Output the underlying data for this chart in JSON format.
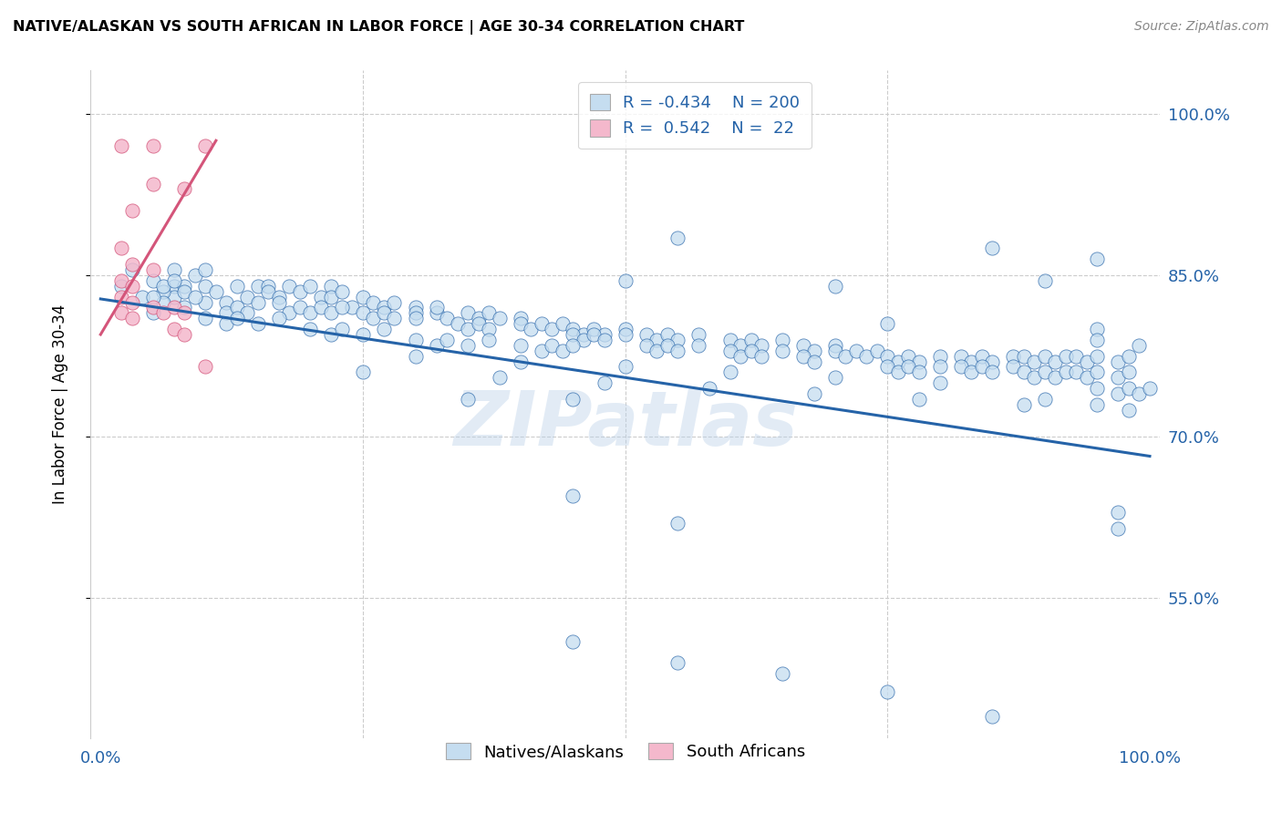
{
  "title": "NATIVE/ALASKAN VS SOUTH AFRICAN IN LABOR FORCE | AGE 30-34 CORRELATION CHART",
  "source": "Source: ZipAtlas.com",
  "ylabel": "In Labor Force | Age 30-34",
  "ytick_labels": [
    "100.0%",
    "85.0%",
    "70.0%",
    "55.0%"
  ],
  "ytick_values": [
    1.0,
    0.85,
    0.7,
    0.55
  ],
  "watermark": "ZIPatlas",
  "blue_R": "-0.434",
  "blue_N": "200",
  "pink_R": "0.542",
  "pink_N": "22",
  "blue_color": "#c5ddf0",
  "pink_color": "#f4b8cc",
  "blue_line_color": "#2563a8",
  "pink_line_color": "#d4557a",
  "legend_blue_label": "Natives/Alaskans",
  "legend_pink_label": "South Africans",
  "blue_scatter": [
    [
      0.02,
      0.84
    ],
    [
      0.03,
      0.855
    ],
    [
      0.04,
      0.83
    ],
    [
      0.07,
      0.855
    ],
    [
      0.07,
      0.84
    ],
    [
      0.07,
      0.83
    ],
    [
      0.08,
      0.84
    ],
    [
      0.09,
      0.85
    ],
    [
      0.1,
      0.855
    ],
    [
      0.05,
      0.845
    ],
    [
      0.06,
      0.835
    ],
    [
      0.05,
      0.815
    ],
    [
      0.06,
      0.825
    ],
    [
      0.08,
      0.82
    ],
    [
      0.1,
      0.84
    ],
    [
      0.1,
      0.825
    ],
    [
      0.11,
      0.835
    ],
    [
      0.12,
      0.825
    ],
    [
      0.13,
      0.84
    ],
    [
      0.14,
      0.83
    ],
    [
      0.15,
      0.84
    ],
    [
      0.16,
      0.84
    ],
    [
      0.18,
      0.84
    ],
    [
      0.16,
      0.835
    ],
    [
      0.17,
      0.83
    ],
    [
      0.15,
      0.825
    ],
    [
      0.17,
      0.825
    ],
    [
      0.19,
      0.835
    ],
    [
      0.2,
      0.84
    ],
    [
      0.21,
      0.83
    ],
    [
      0.22,
      0.84
    ],
    [
      0.22,
      0.83
    ],
    [
      0.23,
      0.835
    ],
    [
      0.24,
      0.82
    ],
    [
      0.25,
      0.83
    ],
    [
      0.26,
      0.825
    ],
    [
      0.27,
      0.82
    ],
    [
      0.28,
      0.825
    ],
    [
      0.3,
      0.82
    ],
    [
      0.32,
      0.815
    ],
    [
      0.3,
      0.815
    ],
    [
      0.32,
      0.82
    ],
    [
      0.18,
      0.815
    ],
    [
      0.19,
      0.82
    ],
    [
      0.2,
      0.815
    ],
    [
      0.21,
      0.82
    ],
    [
      0.22,
      0.815
    ],
    [
      0.23,
      0.82
    ],
    [
      0.12,
      0.815
    ],
    [
      0.13,
      0.82
    ],
    [
      0.14,
      0.815
    ],
    [
      0.05,
      0.83
    ],
    [
      0.06,
      0.84
    ],
    [
      0.07,
      0.845
    ],
    [
      0.08,
      0.835
    ],
    [
      0.09,
      0.83
    ],
    [
      0.25,
      0.815
    ],
    [
      0.26,
      0.81
    ],
    [
      0.27,
      0.815
    ],
    [
      0.28,
      0.81
    ],
    [
      0.3,
      0.81
    ],
    [
      0.35,
      0.815
    ],
    [
      0.36,
      0.81
    ],
    [
      0.37,
      0.815
    ],
    [
      0.38,
      0.81
    ],
    [
      0.4,
      0.81
    ],
    [
      0.33,
      0.81
    ],
    [
      0.34,
      0.805
    ],
    [
      0.35,
      0.8
    ],
    [
      0.36,
      0.805
    ],
    [
      0.37,
      0.8
    ],
    [
      0.4,
      0.805
    ],
    [
      0.41,
      0.8
    ],
    [
      0.42,
      0.805
    ],
    [
      0.43,
      0.8
    ],
    [
      0.44,
      0.805
    ],
    [
      0.45,
      0.8
    ],
    [
      0.46,
      0.795
    ],
    [
      0.47,
      0.8
    ],
    [
      0.48,
      0.795
    ],
    [
      0.5,
      0.8
    ],
    [
      0.45,
      0.795
    ],
    [
      0.46,
      0.79
    ],
    [
      0.47,
      0.795
    ],
    [
      0.48,
      0.79
    ],
    [
      0.5,
      0.795
    ],
    [
      0.52,
      0.795
    ],
    [
      0.53,
      0.79
    ],
    [
      0.54,
      0.795
    ],
    [
      0.55,
      0.79
    ],
    [
      0.57,
      0.795
    ],
    [
      0.52,
      0.785
    ],
    [
      0.53,
      0.78
    ],
    [
      0.54,
      0.785
    ],
    [
      0.55,
      0.78
    ],
    [
      0.57,
      0.785
    ],
    [
      0.6,
      0.79
    ],
    [
      0.61,
      0.785
    ],
    [
      0.62,
      0.79
    ],
    [
      0.63,
      0.785
    ],
    [
      0.65,
      0.79
    ],
    [
      0.6,
      0.78
    ],
    [
      0.61,
      0.775
    ],
    [
      0.62,
      0.78
    ],
    [
      0.63,
      0.775
    ],
    [
      0.65,
      0.78
    ],
    [
      0.67,
      0.785
    ],
    [
      0.68,
      0.78
    ],
    [
      0.7,
      0.785
    ],
    [
      0.67,
      0.775
    ],
    [
      0.68,
      0.77
    ],
    [
      0.7,
      0.78
    ],
    [
      0.71,
      0.775
    ],
    [
      0.72,
      0.78
    ],
    [
      0.73,
      0.775
    ],
    [
      0.74,
      0.78
    ],
    [
      0.75,
      0.775
    ],
    [
      0.76,
      0.77
    ],
    [
      0.77,
      0.775
    ],
    [
      0.78,
      0.77
    ],
    [
      0.8,
      0.775
    ],
    [
      0.75,
      0.765
    ],
    [
      0.76,
      0.76
    ],
    [
      0.77,
      0.765
    ],
    [
      0.78,
      0.76
    ],
    [
      0.8,
      0.765
    ],
    [
      0.82,
      0.775
    ],
    [
      0.83,
      0.77
    ],
    [
      0.84,
      0.775
    ],
    [
      0.85,
      0.77
    ],
    [
      0.87,
      0.775
    ],
    [
      0.82,
      0.765
    ],
    [
      0.83,
      0.76
    ],
    [
      0.84,
      0.765
    ],
    [
      0.85,
      0.76
    ],
    [
      0.87,
      0.765
    ],
    [
      0.88,
      0.775
    ],
    [
      0.89,
      0.77
    ],
    [
      0.9,
      0.775
    ],
    [
      0.91,
      0.77
    ],
    [
      0.92,
      0.775
    ],
    [
      0.88,
      0.76
    ],
    [
      0.89,
      0.755
    ],
    [
      0.9,
      0.76
    ],
    [
      0.91,
      0.755
    ],
    [
      0.92,
      0.76
    ],
    [
      0.93,
      0.775
    ],
    [
      0.94,
      0.77
    ],
    [
      0.95,
      0.775
    ],
    [
      0.97,
      0.77
    ],
    [
      0.98,
      0.775
    ],
    [
      0.93,
      0.76
    ],
    [
      0.94,
      0.755
    ],
    [
      0.95,
      0.76
    ],
    [
      0.97,
      0.755
    ],
    [
      0.98,
      0.76
    ],
    [
      0.95,
      0.745
    ],
    [
      0.97,
      0.74
    ],
    [
      0.98,
      0.745
    ],
    [
      0.99,
      0.74
    ],
    [
      1.0,
      0.745
    ],
    [
      0.3,
      0.79
    ],
    [
      0.32,
      0.785
    ],
    [
      0.33,
      0.79
    ],
    [
      0.35,
      0.785
    ],
    [
      0.37,
      0.79
    ],
    [
      0.2,
      0.8
    ],
    [
      0.22,
      0.795
    ],
    [
      0.23,
      0.8
    ],
    [
      0.25,
      0.795
    ],
    [
      0.27,
      0.8
    ],
    [
      0.1,
      0.81
    ],
    [
      0.12,
      0.805
    ],
    [
      0.13,
      0.81
    ],
    [
      0.15,
      0.805
    ],
    [
      0.17,
      0.81
    ],
    [
      0.4,
      0.785
    ],
    [
      0.42,
      0.78
    ],
    [
      0.43,
      0.785
    ],
    [
      0.44,
      0.78
    ],
    [
      0.45,
      0.785
    ],
    [
      0.7,
      0.84
    ],
    [
      0.85,
      0.875
    ],
    [
      0.5,
      0.845
    ],
    [
      0.55,
      0.885
    ],
    [
      0.75,
      0.805
    ],
    [
      0.9,
      0.845
    ],
    [
      0.95,
      0.865
    ],
    [
      0.95,
      0.8
    ],
    [
      0.7,
      0.755
    ],
    [
      0.8,
      0.75
    ],
    [
      0.9,
      0.735
    ],
    [
      0.5,
      0.765
    ],
    [
      0.6,
      0.76
    ],
    [
      0.4,
      0.77
    ],
    [
      0.3,
      0.775
    ],
    [
      0.45,
      0.735
    ],
    [
      0.45,
      0.51
    ],
    [
      0.55,
      0.49
    ],
    [
      0.65,
      0.48
    ],
    [
      0.75,
      0.463
    ],
    [
      0.85,
      0.44
    ],
    [
      0.55,
      0.62
    ],
    [
      0.45,
      0.645
    ],
    [
      0.35,
      0.735
    ],
    [
      0.25,
      0.76
    ],
    [
      0.38,
      0.755
    ],
    [
      0.48,
      0.75
    ],
    [
      0.58,
      0.745
    ],
    [
      0.68,
      0.74
    ],
    [
      0.78,
      0.735
    ],
    [
      0.88,
      0.73
    ],
    [
      0.98,
      0.725
    ],
    [
      0.97,
      0.63
    ],
    [
      0.97,
      0.615
    ],
    [
      0.95,
      0.79
    ],
    [
      0.95,
      0.73
    ],
    [
      0.99,
      0.785
    ]
  ],
  "pink_scatter": [
    [
      0.02,
      0.97
    ],
    [
      0.05,
      0.97
    ],
    [
      0.1,
      0.97
    ],
    [
      0.05,
      0.935
    ],
    [
      0.08,
      0.93
    ],
    [
      0.03,
      0.91
    ],
    [
      0.02,
      0.875
    ],
    [
      0.03,
      0.86
    ],
    [
      0.05,
      0.855
    ],
    [
      0.02,
      0.845
    ],
    [
      0.03,
      0.84
    ],
    [
      0.02,
      0.83
    ],
    [
      0.03,
      0.825
    ],
    [
      0.02,
      0.815
    ],
    [
      0.03,
      0.81
    ],
    [
      0.05,
      0.82
    ],
    [
      0.06,
      0.815
    ],
    [
      0.07,
      0.82
    ],
    [
      0.08,
      0.815
    ],
    [
      0.07,
      0.8
    ],
    [
      0.08,
      0.795
    ],
    [
      0.1,
      0.765
    ]
  ],
  "blue_trend_x": [
    0.0,
    1.0
  ],
  "blue_trend_y_start": 0.828,
  "blue_trend_y_end": 0.682,
  "pink_trend_x": [
    0.0,
    0.11
  ],
  "pink_trend_y_start": 0.795,
  "pink_trend_y_end": 0.975,
  "xlim": [
    -0.01,
    1.01
  ],
  "ylim": [
    0.42,
    1.04
  ],
  "xtick_positions": [
    0.0,
    0.25,
    0.5,
    0.75,
    1.0
  ],
  "xtick_labels_show": [
    "0.0%",
    "",
    "",
    "",
    "100.0%"
  ]
}
